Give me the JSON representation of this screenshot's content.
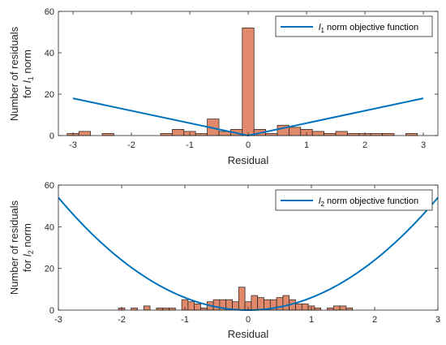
{
  "chart_data": [
    {
      "type": "bar",
      "title": "",
      "xlabel": "Residual",
      "ylabel_line1": "Number of residuals",
      "ylabel_line2_pre": "for ",
      "ylabel_line2_var": "l",
      "ylabel_line2_sub": "1",
      "ylabel_line2_post": " norm",
      "xlim": [
        -3.25,
        3.25
      ],
      "ylim": [
        0,
        60
      ],
      "xticks": [
        -3,
        -2,
        -1,
        0,
        1,
        2,
        3
      ],
      "yticks": [
        0,
        20,
        40,
        60
      ],
      "grid": false,
      "bin_width": 0.2,
      "bar_color": "#e08a6b",
      "bars": [
        {
          "x": -3.0,
          "count": 1
        },
        {
          "x": -2.8,
          "count": 2
        },
        {
          "x": -2.4,
          "count": 1
        },
        {
          "x": -1.4,
          "count": 1
        },
        {
          "x": -1.2,
          "count": 3
        },
        {
          "x": -1.0,
          "count": 2
        },
        {
          "x": -0.8,
          "count": 1
        },
        {
          "x": -0.6,
          "count": 8
        },
        {
          "x": -0.4,
          "count": 2
        },
        {
          "x": -0.2,
          "count": 3
        },
        {
          "x": 0.0,
          "count": 52
        },
        {
          "x": 0.2,
          "count": 3
        },
        {
          "x": 0.4,
          "count": 1
        },
        {
          "x": 0.6,
          "count": 5
        },
        {
          "x": 0.8,
          "count": 4
        },
        {
          "x": 1.0,
          "count": 3
        },
        {
          "x": 1.2,
          "count": 2
        },
        {
          "x": 1.4,
          "count": 1
        },
        {
          "x": 1.6,
          "count": 2
        },
        {
          "x": 1.8,
          "count": 1
        },
        {
          "x": 2.0,
          "count": 1
        },
        {
          "x": 2.2,
          "count": 1
        },
        {
          "x": 2.4,
          "count": 1
        },
        {
          "x": 2.8,
          "count": 1
        }
      ],
      "series": [
        {
          "name": "norm objective function",
          "name_var": "l",
          "name_sub": "1",
          "function": "6*|x|",
          "x": [
            -3,
            0,
            3
          ],
          "y": [
            18,
            0,
            18
          ],
          "color": "#0072bd"
        }
      ],
      "legend": "top-right"
    },
    {
      "type": "bar",
      "title": "",
      "xlabel": "Residual",
      "ylabel_line1": "Number of residuals",
      "ylabel_line2_pre": "for ",
      "ylabel_line2_var": "l",
      "ylabel_line2_sub": "2",
      "ylabel_line2_post": " norm",
      "xlim": [
        -3,
        3
      ],
      "ylim": [
        0,
        60
      ],
      "xticks": [
        -3,
        -2,
        -1,
        0,
        1,
        2,
        3
      ],
      "yticks": [
        0,
        20,
        40,
        60
      ],
      "grid": false,
      "bin_width": 0.1,
      "bar_color": "#e08a6b",
      "bars": [
        {
          "x": -2.0,
          "count": 1
        },
        {
          "x": -1.8,
          "count": 1
        },
        {
          "x": -1.6,
          "count": 2
        },
        {
          "x": -1.4,
          "count": 1
        },
        {
          "x": -1.3,
          "count": 1
        },
        {
          "x": -1.2,
          "count": 1
        },
        {
          "x": -1.0,
          "count": 5
        },
        {
          "x": -0.9,
          "count": 4
        },
        {
          "x": -0.8,
          "count": 3
        },
        {
          "x": -0.7,
          "count": 1
        },
        {
          "x": -0.6,
          "count": 4
        },
        {
          "x": -0.5,
          "count": 5
        },
        {
          "x": -0.4,
          "count": 5
        },
        {
          "x": -0.3,
          "count": 5
        },
        {
          "x": -0.2,
          "count": 4
        },
        {
          "x": -0.1,
          "count": 11
        },
        {
          "x": 0.0,
          "count": 4
        },
        {
          "x": 0.1,
          "count": 7
        },
        {
          "x": 0.2,
          "count": 6
        },
        {
          "x": 0.3,
          "count": 5
        },
        {
          "x": 0.4,
          "count": 5
        },
        {
          "x": 0.5,
          "count": 6
        },
        {
          "x": 0.6,
          "count": 7
        },
        {
          "x": 0.7,
          "count": 5
        },
        {
          "x": 0.8,
          "count": 3
        },
        {
          "x": 0.9,
          "count": 3
        },
        {
          "x": 1.0,
          "count": 2
        },
        {
          "x": 1.1,
          "count": 1
        },
        {
          "x": 1.3,
          "count": 1
        },
        {
          "x": 1.4,
          "count": 2
        },
        {
          "x": 1.5,
          "count": 2
        },
        {
          "x": 1.6,
          "count": 1
        }
      ],
      "series": [
        {
          "name": "norm objective function",
          "name_var": "l",
          "name_sub": "2",
          "function": "6*x^2",
          "color": "#0072bd"
        }
      ],
      "legend": "top-right"
    }
  ]
}
